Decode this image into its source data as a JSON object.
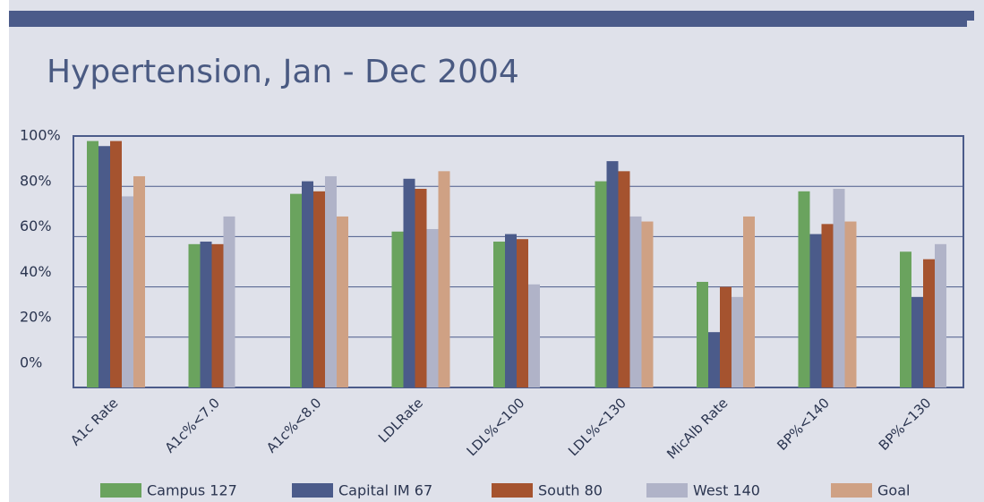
{
  "chart_data": {
    "type": "bar",
    "title": "Hypertension, Jan - Dec 2004",
    "categories": [
      "A1c Rate",
      "A1c%<7.0",
      "A1c%<8.0",
      "LDLRate",
      "LDL%<100",
      "LDL%<130",
      "MicAlb Rate",
      "BP%<140",
      "BP%<130"
    ],
    "series": [
      {
        "name": "Campus 127",
        "color": "#6aa35e",
        "values": [
          98,
          57,
          77,
          62,
          58,
          82,
          42,
          78,
          54
        ]
      },
      {
        "name": "Capital IM 67",
        "color": "#4b5b8a",
        "values": [
          96,
          58,
          82,
          83,
          61,
          90,
          22,
          61,
          36
        ]
      },
      {
        "name": "South 80",
        "color": "#a5532f",
        "values": [
          98,
          57,
          78,
          79,
          59,
          86,
          40,
          65,
          51
        ]
      },
      {
        "name": "West 140",
        "color": "#b0b3c8",
        "values": [
          76,
          68,
          84,
          63,
          41,
          68,
          36,
          79,
          57
        ]
      },
      {
        "name": "Goal",
        "color": "#cfa184",
        "values": [
          84,
          null,
          68,
          86,
          null,
          66,
          68,
          66,
          null
        ]
      }
    ],
    "ylim": [
      0,
      100
    ],
    "yticks": [
      {
        "value": 0,
        "label": "0%"
      },
      {
        "value": 20,
        "label": "20%"
      },
      {
        "value": 40,
        "label": "40%"
      },
      {
        "value": 60,
        "label": "60%"
      },
      {
        "value": 80,
        "label": "80%"
      },
      {
        "value": 100,
        "label": "100%"
      }
    ],
    "grid": true
  }
}
